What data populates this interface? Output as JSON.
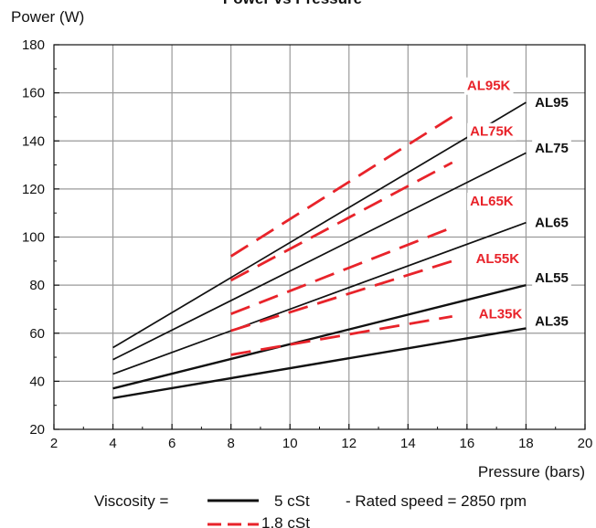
{
  "chart_data": {
    "type": "line",
    "title": "Power vs Pressure",
    "xlabel": "Pressure (bars)",
    "ylabel": "Power (W)",
    "xlim": [
      2,
      20
    ],
    "ylim": [
      20,
      180
    ],
    "x_ticks": [
      2,
      4,
      6,
      8,
      10,
      12,
      14,
      16,
      18,
      20
    ],
    "y_ticks": [
      20,
      40,
      60,
      80,
      100,
      120,
      140,
      160,
      180
    ],
    "grid": true,
    "colors": {
      "solid": "#111111",
      "dashed": "#e8232a"
    },
    "series": [
      {
        "name": "AL95",
        "style": "solid",
        "x": [
          4,
          18
        ],
        "y": [
          54,
          156
        ]
      },
      {
        "name": "AL75",
        "style": "solid",
        "x": [
          4,
          18
        ],
        "y": [
          49,
          135
        ]
      },
      {
        "name": "AL65",
        "style": "solid",
        "x": [
          4,
          18
        ],
        "y": [
          43,
          106
        ]
      },
      {
        "name": "AL55",
        "style": "solid",
        "x": [
          4,
          18
        ],
        "y": [
          37,
          80
        ]
      },
      {
        "name": "AL35",
        "style": "solid",
        "x": [
          4,
          18
        ],
        "y": [
          33,
          62
        ]
      },
      {
        "name": "AL95K",
        "style": "dashed",
        "x": [
          8,
          15.5
        ],
        "y": [
          92,
          150
        ]
      },
      {
        "name": "AL75K",
        "style": "dashed",
        "x": [
          8,
          15.5
        ],
        "y": [
          82,
          131
        ]
      },
      {
        "name": "AL65K",
        "style": "dashed",
        "x": [
          8,
          15.5
        ],
        "y": [
          68,
          104
        ]
      },
      {
        "name": "AL55K",
        "style": "dashed",
        "x": [
          8,
          15.5
        ],
        "y": [
          61,
          90
        ]
      },
      {
        "name": "AL35K",
        "style": "dashed",
        "x": [
          8,
          15.5
        ],
        "y": [
          51,
          67
        ]
      }
    ],
    "series_labels": [
      {
        "text": "AL95",
        "x": 18.3,
        "y": 156,
        "color": "solid"
      },
      {
        "text": "AL75",
        "x": 18.3,
        "y": 137,
        "color": "solid"
      },
      {
        "text": "AL65",
        "x": 18.3,
        "y": 106,
        "color": "solid"
      },
      {
        "text": "AL55",
        "x": 18.3,
        "y": 83,
        "color": "solid"
      },
      {
        "text": "AL35",
        "x": 18.3,
        "y": 65,
        "color": "solid"
      },
      {
        "text": "AL95K",
        "x": 16.0,
        "y": 163,
        "color": "dashed"
      },
      {
        "text": "AL75K",
        "x": 16.1,
        "y": 144,
        "color": "dashed"
      },
      {
        "text": "AL65K",
        "x": 16.1,
        "y": 115,
        "color": "dashed"
      },
      {
        "text": "AL55K",
        "x": 16.3,
        "y": 91,
        "color": "dashed"
      },
      {
        "text": "AL35K",
        "x": 16.4,
        "y": 68,
        "color": "dashed"
      }
    ],
    "legend": {
      "prefix": "Viscosity =",
      "solid_label": "5 cSt",
      "note": "- Rated speed = 2850 rpm",
      "dashed_label": "1.8 cSt"
    }
  }
}
